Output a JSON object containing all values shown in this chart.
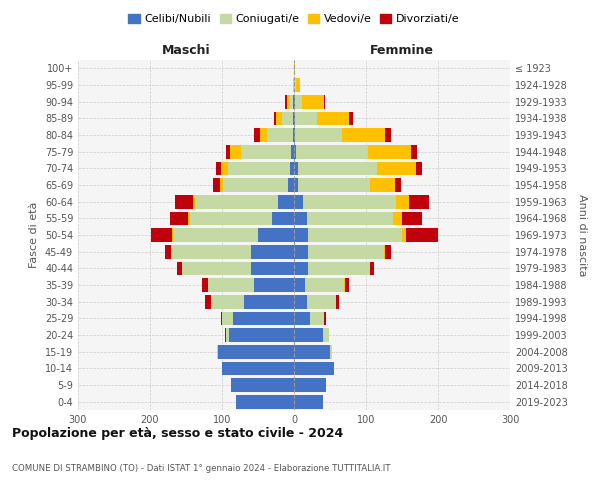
{
  "age_groups": [
    "0-4",
    "5-9",
    "10-14",
    "15-19",
    "20-24",
    "25-29",
    "30-34",
    "35-39",
    "40-44",
    "45-49",
    "50-54",
    "55-59",
    "60-64",
    "65-69",
    "70-74",
    "75-79",
    "80-84",
    "85-89",
    "90-94",
    "95-99",
    "100+"
  ],
  "birth_years": [
    "2019-2023",
    "2014-2018",
    "2009-2013",
    "2004-2008",
    "1999-2003",
    "1994-1998",
    "1989-1993",
    "1984-1988",
    "1979-1983",
    "1974-1978",
    "1969-1973",
    "1964-1968",
    "1959-1963",
    "1954-1958",
    "1949-1953",
    "1944-1948",
    "1939-1943",
    "1934-1938",
    "1929-1933",
    "1924-1928",
    "≤ 1923"
  ],
  "males": {
    "celibe": [
      80,
      88,
      100,
      105,
      90,
      85,
      70,
      55,
      60,
      60,
      50,
      30,
      22,
      8,
      6,
      4,
      2,
      2,
      1,
      0,
      0
    ],
    "coniugato": [
      0,
      0,
      0,
      2,
      5,
      15,
      45,
      65,
      95,
      110,
      118,
      115,
      115,
      90,
      85,
      70,
      35,
      15,
      4,
      1,
      0
    ],
    "vedovo": [
      0,
      0,
      0,
      0,
      0,
      0,
      0,
      0,
      0,
      1,
      1,
      2,
      3,
      5,
      10,
      15,
      10,
      8,
      5,
      1,
      0
    ],
    "divorziato": [
      0,
      0,
      0,
      0,
      1,
      2,
      8,
      8,
      8,
      8,
      30,
      25,
      25,
      10,
      8,
      5,
      8,
      3,
      2,
      0,
      0
    ]
  },
  "females": {
    "nubile": [
      40,
      45,
      55,
      50,
      40,
      22,
      18,
      15,
      20,
      20,
      20,
      18,
      12,
      5,
      5,
      3,
      2,
      2,
      1,
      0,
      0
    ],
    "coniugata": [
      0,
      0,
      1,
      3,
      8,
      20,
      40,
      55,
      85,
      105,
      130,
      120,
      130,
      100,
      110,
      100,
      65,
      30,
      10,
      3,
      0
    ],
    "vedova": [
      0,
      0,
      0,
      0,
      0,
      0,
      0,
      1,
      1,
      2,
      5,
      12,
      18,
      35,
      55,
      60,
      60,
      45,
      30,
      5,
      1
    ],
    "divorziata": [
      0,
      0,
      0,
      0,
      0,
      2,
      5,
      5,
      5,
      8,
      45,
      28,
      28,
      8,
      8,
      8,
      8,
      5,
      2,
      0,
      0
    ]
  },
  "colors": {
    "celibe": "#4472c4",
    "coniugato": "#c5d9a5",
    "vedovo": "#ffc000",
    "divorziato": "#c0000a"
  },
  "title": "Popolazione per età, sesso e stato civile - 2024",
  "subtitle": "COMUNE DI STRAMBINO (TO) - Dati ISTAT 1° gennaio 2024 - Elaborazione TUTTITALIA.IT",
  "xlabel_left": "Maschi",
  "xlabel_right": "Femmine",
  "ylabel_left": "Fasce di età",
  "ylabel_right": "Anni di nascita",
  "xlim": 300,
  "legend_labels": [
    "Celibi/Nubili",
    "Coniugati/e",
    "Vedovi/e",
    "Divorziati/e"
  ],
  "bg_color": "#f5f5f5",
  "grid_color": "#cccccc"
}
